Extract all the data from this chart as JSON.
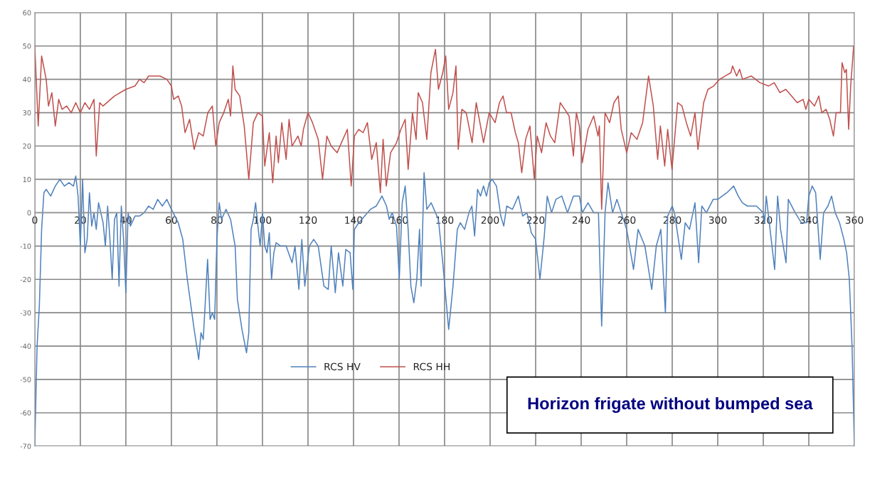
{
  "chart_data": {
    "type": "line",
    "series": [
      {
        "name": "RCS HV",
        "color": "#4f81bd",
        "x": [
          0,
          1,
          2,
          3,
          4,
          5,
          7,
          9,
          11,
          13,
          15,
          17,
          18,
          19,
          20,
          21,
          22,
          23,
          24,
          25,
          26,
          27,
          28,
          30,
          31,
          32,
          33,
          34,
          35,
          36,
          37,
          38,
          39,
          40,
          41,
          42,
          44,
          46,
          48,
          50,
          52,
          54,
          56,
          58,
          60,
          63,
          65,
          67,
          69,
          70,
          72,
          73,
          74,
          75.9,
          77,
          78,
          79,
          80,
          81,
          82,
          84,
          86,
          88,
          89,
          91,
          93,
          94,
          95,
          96,
          97,
          98,
          99,
          100,
          101,
          102,
          103,
          104,
          105,
          106,
          108,
          110.4,
          113,
          114.3,
          116,
          117.3,
          118.6,
          120.6,
          122.5,
          124.5,
          127,
          128.9,
          130.2,
          132,
          133.4,
          135.3,
          136.6,
          138.5,
          139.7,
          140.4,
          142.3,
          144.9,
          147.4,
          150,
          152.5,
          154.5,
          155.7,
          157,
          158.9,
          160.1,
          161.4,
          162.7,
          164,
          165.2,
          166.5,
          167.8,
          169,
          169.7,
          171,
          172.2,
          174.1,
          176,
          177.3,
          179.2,
          181.8,
          183.7,
          185.6,
          186.9,
          188.8,
          190.7,
          192,
          193.2,
          194.5,
          195.8,
          197.1,
          198.4,
          199.6,
          200.9,
          202.8,
          204.7,
          206,
          207.3,
          209.8,
          212.4,
          214.3,
          216.2,
          218.1,
          220,
          221.9,
          223.8,
          225.1,
          227,
          228.9,
          231.5,
          234,
          236.6,
          239.2,
          240.5,
          243,
          245.5,
          247.6,
          249,
          250.5,
          251.8,
          253.8,
          255.7,
          257.6,
          260,
          263,
          265,
          268,
          271,
          273,
          275,
          277,
          278,
          280,
          281,
          284,
          285.7,
          287.6,
          290,
          291.6,
          293,
          295,
          298,
          300,
          302,
          304,
          307,
          309,
          310.8,
          313,
          317,
          320,
          320.6,
          321.3,
          325,
          326.3,
          327.6,
          330,
          331,
          334,
          336.7,
          339,
          340,
          341.5,
          343,
          345,
          346.5,
          348.4,
          350,
          351.6,
          353.5,
          355.4,
          356.6,
          357.8,
          359,
          360
        ],
        "values": [
          -70,
          -40,
          -28,
          -5,
          6,
          7,
          5,
          8,
          10,
          8,
          9,
          8,
          11,
          5,
          -10,
          10,
          -12,
          -8,
          6,
          -4,
          0,
          -5,
          3,
          -3,
          -10,
          2,
          -8,
          -20,
          -2,
          0,
          -22,
          2,
          -8,
          -24,
          0,
          -4,
          -1,
          -1,
          0,
          2,
          1,
          4,
          2,
          4,
          1,
          -3,
          -8,
          -20,
          -30,
          -35,
          -44,
          -36,
          -38,
          -14,
          -32,
          -30,
          -32,
          -8,
          3,
          -2,
          1,
          -2,
          -10,
          -26,
          -35,
          -42,
          -36,
          -5,
          -2,
          3,
          -4,
          -10,
          0,
          -10,
          -12,
          -6,
          -20,
          -12,
          -9,
          -10,
          -10,
          -15,
          -10,
          -23,
          -8,
          -22,
          -10,
          -8,
          -10,
          -22,
          -23,
          -10,
          -24,
          -12,
          -22,
          -11,
          -12,
          -23,
          -5,
          -3,
          -1,
          1,
          2,
          5,
          2,
          -2,
          0,
          -4,
          -20,
          3,
          8,
          -5,
          -22,
          -27,
          -20,
          -5,
          -22,
          12,
          1,
          3,
          0,
          -2,
          -15,
          -35,
          -22,
          -5,
          -3,
          -5,
          0,
          2,
          -7,
          7,
          5,
          8,
          5,
          9,
          10,
          8,
          -1,
          -4,
          2,
          1,
          5,
          -1,
          0,
          -6,
          -8,
          -20,
          -7,
          5,
          0,
          4,
          5,
          0,
          5,
          5,
          0,
          3,
          0,
          0,
          -34,
          0,
          9,
          0,
          4,
          0,
          -5,
          -17,
          -5,
          -10,
          -23,
          -10,
          -5,
          -30,
          -1,
          2,
          0,
          -14,
          -3,
          -5,
          3,
          -15,
          2,
          0,
          4,
          4,
          5,
          6,
          8,
          5,
          3,
          2,
          2,
          0,
          -3,
          5,
          -17,
          5,
          -5,
          -15,
          4,
          0,
          -3,
          -3,
          5,
          8,
          6,
          -14,
          0,
          2,
          5,
          0,
          -3,
          -8,
          -12,
          -20,
          -40,
          -70
        ]
      },
      {
        "name": "RCS HH",
        "color": "#c0504d",
        "x": [
          0,
          1.5,
          3,
          5,
          6,
          7.5,
          9,
          10.5,
          12,
          14,
          16,
          18,
          20,
          22,
          24,
          26,
          27,
          28.5,
          30,
          35,
          40,
          44,
          46,
          48,
          50,
          55,
          58,
          60,
          61,
          63,
          64.5,
          66,
          68,
          70,
          72,
          74,
          76,
          78,
          79.5,
          81,
          83,
          85,
          86,
          87,
          88,
          90,
          92,
          94,
          96,
          98,
          100,
          101,
          103,
          104.5,
          106,
          107,
          108.5,
          110.4,
          111.7,
          113,
          115.6,
          117,
          118,
          120,
          122,
          124.5,
          126.4,
          128.3,
          130.2,
          132.8,
          134.7,
          137.3,
          139,
          140.4,
          142.3,
          144.2,
          146.1,
          148,
          150,
          151.8,
          153,
          154.4,
          156.3,
          158.9,
          160.8,
          162.7,
          164,
          165.9,
          167.5,
          168.4,
          170.3,
          172.2,
          174,
          176,
          177.3,
          179.2,
          180.5,
          181.8,
          183.7,
          185,
          186,
          187.6,
          189.5,
          192.1,
          193.9,
          195.8,
          197.1,
          199.6,
          202.2,
          204.1,
          205.7,
          207.2,
          209.2,
          211.1,
          212.4,
          213.9,
          215.6,
          217.5,
          219.4,
          220.7,
          222.6,
          224.6,
          226.5,
          228.4,
          230.8,
          232.8,
          234.7,
          236.6,
          237.9,
          239.2,
          240.5,
          243,
          245.5,
          247.4,
          248,
          249,
          250.5,
          252.5,
          254.4,
          256.3,
          257.6,
          260,
          262,
          264.5,
          267,
          269.6,
          271.7,
          273.6,
          274.8,
          276.7,
          278,
          279.9,
          282.4,
          284.3,
          286.2,
          288.1,
          290,
          291.3,
          293.8,
          295.7,
          298.2,
          300.8,
          303.3,
          305.8,
          306.5,
          308.3,
          309.6,
          310.9,
          314.7,
          318.5,
          322.3,
          324.8,
          327.3,
          329.9,
          332.4,
          334.9,
          337.5,
          338.7,
          340,
          342.5,
          344.4,
          345.7,
          347.6,
          349.2,
          350.8,
          352,
          353.9,
          354.6,
          355.8,
          356.5,
          357.5,
          358.4,
          359.7
        ],
        "values": [
          50,
          26,
          47,
          40,
          32,
          36,
          26,
          34,
          31,
          32,
          30,
          33,
          30,
          33,
          31,
          34,
          17,
          33,
          32,
          35,
          37,
          38,
          40,
          39,
          41,
          41,
          40,
          38,
          34,
          35,
          32,
          24,
          28,
          19,
          24,
          23,
          30,
          32,
          20,
          27,
          30,
          34,
          29,
          44,
          37,
          35,
          26,
          10,
          27,
          30,
          29,
          14,
          24,
          9,
          23,
          15,
          27,
          16,
          28,
          20,
          23,
          20,
          25,
          30,
          27,
          22,
          10,
          23,
          20,
          18,
          21,
          25,
          8,
          23,
          25,
          24,
          27,
          16,
          21,
          6,
          22,
          8,
          18,
          21,
          25,
          28,
          13,
          30,
          22,
          36,
          33,
          22,
          42,
          49,
          37,
          42,
          47,
          31,
          36,
          44,
          19,
          31,
          30,
          21,
          33,
          26,
          21,
          30,
          27,
          33,
          35,
          30,
          30,
          24,
          21,
          12,
          22,
          26,
          10,
          23,
          18,
          27,
          23,
          21,
          33,
          31,
          29,
          17,
          30,
          26,
          15,
          25,
          29,
          23,
          26,
          1,
          30,
          27,
          33,
          35,
          25,
          18,
          24,
          22,
          27,
          41,
          32,
          16,
          26,
          14,
          25,
          13,
          33,
          32,
          27,
          23,
          30,
          19,
          33,
          37,
          38,
          40,
          41,
          42,
          44,
          41,
          43,
          40,
          41,
          39,
          38,
          39,
          36,
          37,
          35,
          33,
          34,
          31,
          34,
          32,
          35,
          30,
          31,
          28,
          23,
          30,
          30,
          45,
          42,
          43,
          25,
          38,
          50
        ]
      }
    ],
    "xlim": [
      0,
      360
    ],
    "xticks": [
      0,
      20,
      40,
      60,
      80,
      100,
      120,
      140,
      160,
      180,
      200,
      220,
      240,
      260,
      280,
      300,
      320,
      340,
      360
    ],
    "ylim": [
      -70,
      60
    ],
    "yticks": [
      -70,
      -60,
      -50,
      -40,
      -30,
      -20,
      -10,
      0,
      10,
      20,
      30,
      40,
      50,
      60
    ],
    "grid": true,
    "legend": "bottom",
    "annotations": [
      "Horizon frigate without bumped sea"
    ]
  }
}
